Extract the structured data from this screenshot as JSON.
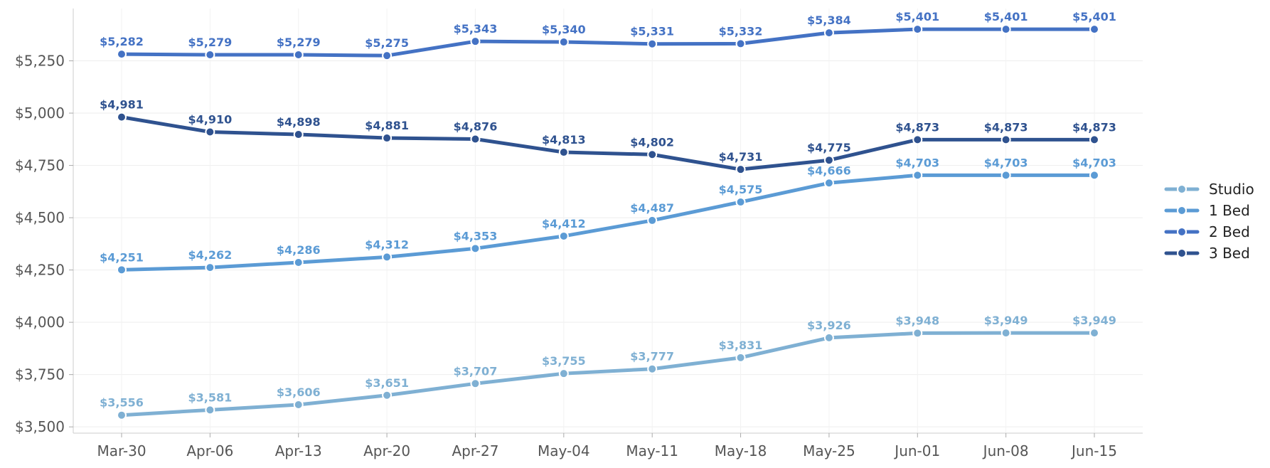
{
  "chart_data": {
    "type": "line",
    "title": "",
    "xlabel": "",
    "ylabel": "",
    "categories": [
      "Mar-30",
      "Apr-06",
      "Apr-13",
      "Apr-20",
      "Apr-27",
      "May-04",
      "May-11",
      "May-18",
      "May-25",
      "Jun-01",
      "Jun-08",
      "Jun-15"
    ],
    "ylim": [
      3470,
      5500
    ],
    "yticks": [
      3500,
      3750,
      4000,
      4250,
      4500,
      4750,
      5000,
      5250
    ],
    "ytick_labels": [
      "$3,500",
      "$3,750",
      "$4,000",
      "$4,250",
      "$4,500",
      "$4,750",
      "$5,000",
      "$5,250"
    ],
    "grid": true,
    "legend_position": "right",
    "series": [
      {
        "name": "Studio",
        "color": "#7fb0d3",
        "values": [
          3556,
          3581,
          3606,
          3651,
          3707,
          3755,
          3777,
          3831,
          3926,
          3948,
          3949,
          3949
        ],
        "labels": [
          "$3,556",
          "$3,581",
          "$3,606",
          "$3,651",
          "$3,707",
          "$3,755",
          "$3,777",
          "$3,831",
          "$3,926",
          "$3,948",
          "$3,949",
          "$3,949"
        ]
      },
      {
        "name": "1 Bed",
        "color": "#5b9bd5",
        "values": [
          4251,
          4262,
          4286,
          4312,
          4353,
          4412,
          4487,
          4575,
          4666,
          4703,
          4703,
          4703
        ],
        "labels": [
          "$4,251",
          "$4,262",
          "$4,286",
          "$4,312",
          "$4,353",
          "$4,412",
          "$4,487",
          "$4,575",
          "$4,666",
          "$4,703",
          "$4,703",
          "$4,703"
        ]
      },
      {
        "name": "2 Bed",
        "color": "#4472c4",
        "values": [
          5282,
          5279,
          5279,
          5275,
          5343,
          5340,
          5331,
          5332,
          5384,
          5401,
          5401,
          5401
        ],
        "labels": [
          "$5,282",
          "$5,279",
          "$5,279",
          "$5,275",
          "$5,343",
          "$5,340",
          "$5,331",
          "$5,332",
          "$5,384",
          "$5,401",
          "$5,401",
          "$5,401"
        ]
      },
      {
        "name": "3 Bed",
        "color": "#2f528f",
        "values": [
          4981,
          4910,
          4898,
          4881,
          4876,
          4813,
          4802,
          4731,
          4775,
          4873,
          4873,
          4873
        ],
        "labels": [
          "$4,981",
          "$4,910",
          "$4,898",
          "$4,881",
          "$4,876",
          "$4,813",
          "$4,802",
          "$4,731",
          "$4,775",
          "$4,873",
          "$4,873",
          "$4,873"
        ]
      }
    ]
  }
}
